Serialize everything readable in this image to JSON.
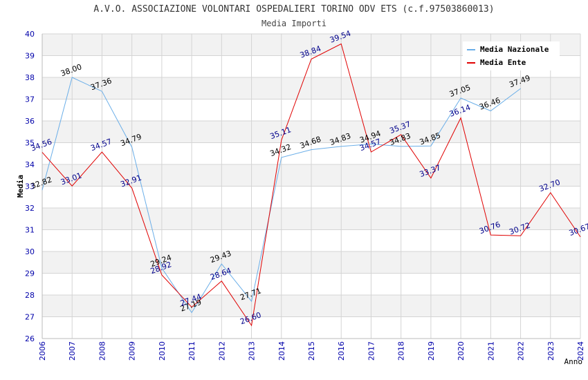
{
  "chart_data": {
    "type": "line",
    "title": "A.V.O. ASSOCIAZIONE VOLONTARI OSPEDALIERI TORINO ODV ETS (c.f.97503860013)",
    "subtitle": "Media Importi",
    "xlabel": "Anno",
    "ylabel": "Media",
    "ylim": [
      26,
      40
    ],
    "xlim": [
      2006,
      2024
    ],
    "yticks": [
      26,
      27,
      28,
      29,
      30,
      31,
      32,
      33,
      34,
      35,
      36,
      37,
      38,
      39,
      40
    ],
    "xticks": [
      2006,
      2007,
      2008,
      2009,
      2010,
      2011,
      2012,
      2013,
      2014,
      2015,
      2016,
      2017,
      2018,
      2019,
      2020,
      2021,
      2022,
      2023,
      2024
    ],
    "grid": true,
    "legend_position": "top-right",
    "series": [
      {
        "name": "Media Nazionale",
        "color": "#6aaee8",
        "label_color": "#000000",
        "x": [
          2006,
          2007,
          2008,
          2009,
          2010,
          2011,
          2012,
          2013,
          2014,
          2015,
          2016,
          2017,
          2018,
          2019,
          2020,
          2021,
          2022
        ],
        "values": [
          32.82,
          38.0,
          37.36,
          34.79,
          29.24,
          27.19,
          29.43,
          27.71,
          34.32,
          34.68,
          34.83,
          34.94,
          34.83,
          34.85,
          37.05,
          36.46,
          37.49
        ],
        "labels": [
          "32.82",
          "38.00",
          "37.36",
          "34.79",
          "29.24",
          "27.19",
          "29.43",
          "27.71",
          "34.32",
          "34.68",
          "34.83",
          "34.94",
          "34.83",
          "34.85",
          "37.05",
          "36.46",
          "37.49"
        ]
      },
      {
        "name": "Media Ente",
        "color": "#e00000",
        "label_color": "#00008b",
        "x": [
          2006,
          2007,
          2008,
          2009,
          2010,
          2011,
          2012,
          2013,
          2014,
          2015,
          2016,
          2017,
          2018,
          2019,
          2020,
          2021,
          2022,
          2023,
          2024
        ],
        "values": [
          34.56,
          33.01,
          34.57,
          32.91,
          28.92,
          27.44,
          28.64,
          26.6,
          35.11,
          38.84,
          39.54,
          34.57,
          35.37,
          33.37,
          36.14,
          30.76,
          30.72,
          32.7,
          30.67
        ],
        "labels": [
          "34.56",
          "33.01",
          "34.57",
          "32.91",
          "28.92",
          "27.44",
          "28.64",
          "26.60",
          "35.11",
          "38.84",
          "39.54",
          "34.57",
          "35.37",
          "33.37",
          "36.14",
          "30.76",
          "30.72",
          "32.70",
          "30.67"
        ]
      }
    ]
  }
}
